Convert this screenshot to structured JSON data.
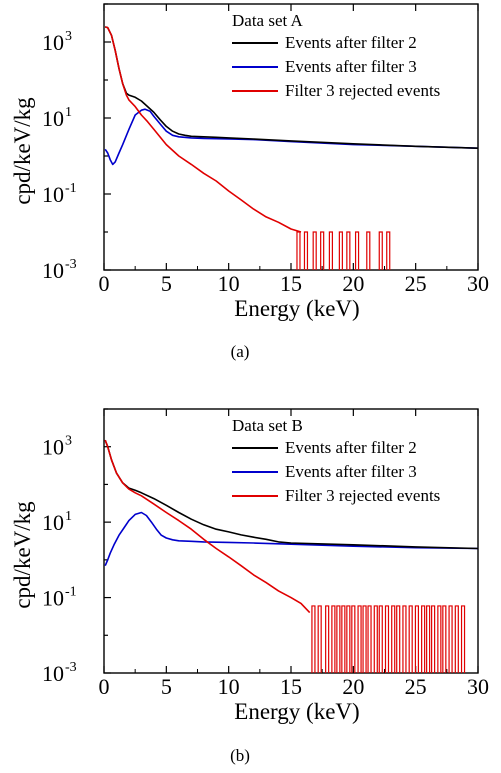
{
  "chart_data": [
    {
      "type": "line",
      "panel_label": "(a)",
      "dataset_label": "Data set A",
      "xlabel": "Energy (keV)",
      "ylabel": "cpd/keV/kg",
      "xlim": [
        0,
        30
      ],
      "ylim": [
        0.001,
        10000
      ],
      "yscale": "log",
      "grid": false,
      "legend_position": "top-right",
      "x_ticks": [
        "0",
        "5",
        "10",
        "15",
        "20",
        "25",
        "30"
      ],
      "y_ticks": [
        {
          "base": "10",
          "exp": "3"
        },
        {
          "base": "10",
          "exp": "1"
        },
        {
          "base": "10",
          "exp": "-1"
        },
        {
          "base": "10",
          "exp": "-3"
        }
      ],
      "series": [
        {
          "name": "Events after filter 2",
          "color": "#000000",
          "x": [
            0.1,
            0.3,
            0.6,
            0.9,
            1.2,
            1.5,
            1.8,
            2.0,
            2.5,
            3.0,
            3.5,
            4.0,
            4.5,
            5.0,
            5.5,
            6.0,
            6.5,
            7.0,
            8.0,
            9.0,
            10.0,
            12.0,
            15.0,
            20.0,
            25.0,
            30.0
          ],
          "y": [
            2500,
            2400,
            1500,
            600,
            200,
            80,
            45,
            40,
            35,
            28,
            20,
            14,
            9,
            6,
            4.5,
            3.8,
            3.5,
            3.3,
            3.2,
            3.1,
            3.0,
            2.8,
            2.5,
            2.1,
            1.8,
            1.6
          ]
        },
        {
          "name": "Events after filter 3",
          "color": "#0000cc",
          "x": [
            0.1,
            0.3,
            0.5,
            0.7,
            0.9,
            1.2,
            1.5,
            2.0,
            2.5,
            3.0,
            3.3,
            3.7,
            4.0,
            4.5,
            5.0,
            5.5,
            6.0,
            7.0,
            8.0,
            10.0,
            12.0,
            15.0,
            20.0,
            25.0,
            30.0
          ],
          "y": [
            1.5,
            1.2,
            0.8,
            0.6,
            0.7,
            1.2,
            2.0,
            5.0,
            12,
            16,
            17,
            15,
            11,
            7,
            4.5,
            3.5,
            3.2,
            3.0,
            2.9,
            2.8,
            2.7,
            2.4,
            2.0,
            1.8,
            1.6
          ]
        },
        {
          "name": "Filter 3 rejected events",
          "color": "#e00000",
          "x": [
            0.1,
            0.3,
            0.6,
            0.9,
            1.2,
            1.5,
            1.8,
            2.0,
            2.5,
            3.0,
            3.5,
            4.0,
            5.0,
            6.0,
            7.0,
            8.0,
            9.0,
            10.0,
            11.0,
            12.0,
            13.0,
            14.0,
            15.0,
            15.8
          ],
          "y": [
            2500,
            2400,
            1500,
            600,
            200,
            80,
            40,
            30,
            20,
            12,
            8,
            5,
            2,
            1.0,
            0.6,
            0.35,
            0.22,
            0.12,
            0.07,
            0.04,
            0.025,
            0.018,
            0.012,
            0.01
          ]
        }
      ],
      "spikes": {
        "series": "Filter 3 rejected events",
        "color": "#e00000",
        "x": [
          15.6,
          16.2,
          16.9,
          17.5,
          18.2,
          19.0,
          19.6,
          20.3,
          21.2,
          22.2,
          22.8
        ],
        "top": 0.01
      }
    },
    {
      "type": "line",
      "panel_label": "(b)",
      "dataset_label": "Data set B",
      "xlabel": "Energy (keV)",
      "ylabel": "cpd/keV/kg",
      "xlim": [
        0,
        30
      ],
      "ylim": [
        0.001,
        10000
      ],
      "yscale": "log",
      "grid": false,
      "legend_position": "top-right",
      "x_ticks": [
        "0",
        "5",
        "10",
        "15",
        "20",
        "25",
        "30"
      ],
      "y_ticks": [
        {
          "base": "10",
          "exp": "3"
        },
        {
          "base": "10",
          "exp": "1"
        },
        {
          "base": "10",
          "exp": "-1"
        },
        {
          "base": "10",
          "exp": "-3"
        }
      ],
      "series": [
        {
          "name": "Events after filter 2",
          "color": "#000000",
          "x": [
            0.1,
            0.3,
            0.6,
            1.0,
            1.5,
            2.0,
            2.5,
            3.0,
            4.0,
            5.0,
            6.0,
            7.0,
            8.0,
            9.0,
            10.0,
            11.0,
            12.0,
            13.0,
            14.0,
            15.0,
            20.0,
            25.0,
            30.0
          ],
          "y": [
            1500,
            1000,
            450,
            200,
            110,
            80,
            70,
            60,
            42,
            28,
            18,
            12,
            8.5,
            6.5,
            5.5,
            4.6,
            4.0,
            3.5,
            3.0,
            2.8,
            2.5,
            2.2,
            2.0
          ]
        },
        {
          "name": "Events after filter 3",
          "color": "#0000cc",
          "x": [
            0.1,
            0.3,
            0.5,
            0.8,
            1.2,
            1.6,
            2.0,
            2.5,
            3.0,
            3.4,
            3.8,
            4.2,
            4.6,
            5.0,
            5.5,
            6.0,
            7.0,
            8.0,
            10.0,
            12.0,
            15.0,
            20.0,
            25.0,
            30.0
          ],
          "y": [
            0.7,
            1.0,
            1.5,
            2.5,
            4.5,
            7,
            11,
            16,
            18,
            15,
            10,
            6.5,
            4.5,
            3.8,
            3.4,
            3.2,
            3.1,
            3.0,
            2.9,
            2.8,
            2.6,
            2.3,
            2.1,
            2.0
          ]
        },
        {
          "name": "Filter 3 rejected events",
          "color": "#e00000",
          "x": [
            0.1,
            0.3,
            0.6,
            1.0,
            1.5,
            2.0,
            2.5,
            3.0,
            4.0,
            5.0,
            6.0,
            7.0,
            8.0,
            9.0,
            10.0,
            11.0,
            12.0,
            13.0,
            14.0,
            15.0,
            15.8,
            16.5
          ],
          "y": [
            1500,
            1000,
            450,
            200,
            110,
            75,
            60,
            50,
            30,
            18,
            11,
            6.5,
            3.5,
            2.0,
            1.2,
            0.7,
            0.4,
            0.25,
            0.15,
            0.1,
            0.07,
            0.04
          ]
        }
      ],
      "spikes": {
        "series": "Filter 3 rejected events",
        "color": "#e00000",
        "x": [
          16.8,
          17.3,
          17.9,
          18.4,
          18.8,
          19.2,
          19.6,
          20.0,
          20.5,
          20.9,
          21.3,
          21.8,
          22.2,
          22.7,
          23.2,
          23.6,
          24.1,
          24.6,
          25.1,
          25.6,
          26.0,
          26.4,
          26.9,
          27.3,
          27.8,
          28.3,
          28.8
        ],
        "top": 0.06
      }
    }
  ]
}
